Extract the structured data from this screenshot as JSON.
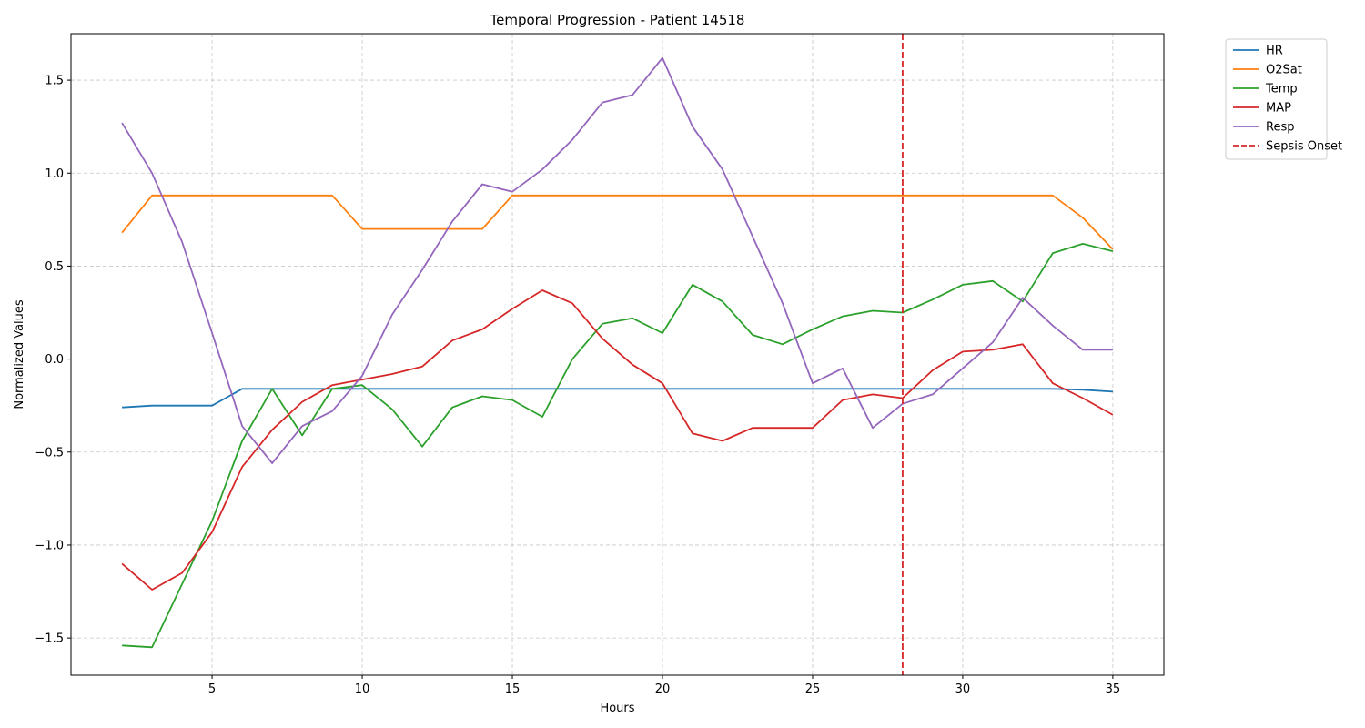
{
  "chart_data": {
    "type": "line",
    "title": "Temporal Progression - Patient 14518",
    "xlabel": "Hours",
    "ylabel": "Normalized Values",
    "xlim": [
      0.3,
      36.7
    ],
    "ylim": [
      -1.7,
      1.75
    ],
    "xticks": [
      5,
      10,
      15,
      20,
      25,
      30,
      35
    ],
    "yticks": [
      -1.5,
      -1.0,
      -0.5,
      0.0,
      0.5,
      1.0,
      1.5
    ],
    "ytick_labels": [
      "−1.5",
      "−1.0",
      "−0.5",
      "0.0",
      "0.5",
      "1.0",
      "1.5"
    ],
    "grid": true,
    "legend_position": "outside-top-right",
    "x": [
      2,
      3,
      4,
      5,
      6,
      7,
      8,
      9,
      10,
      11,
      12,
      13,
      14,
      15,
      16,
      17,
      18,
      19,
      20,
      21,
      22,
      23,
      24,
      25,
      26,
      27,
      28,
      29,
      30,
      31,
      32,
      33,
      34,
      35
    ],
    "series": [
      {
        "name": "HR",
        "color": "#1f77b4",
        "values": [
          -0.26,
          -0.25,
          -0.25,
          -0.25,
          -0.16,
          -0.16,
          -0.16,
          -0.16,
          -0.16,
          -0.16,
          -0.16,
          -0.16,
          -0.16,
          -0.16,
          -0.16,
          -0.16,
          -0.16,
          -0.16,
          -0.16,
          -0.16,
          -0.16,
          -0.16,
          -0.16,
          -0.16,
          -0.16,
          -0.16,
          -0.16,
          -0.16,
          -0.16,
          -0.16,
          -0.16,
          -0.16,
          -0.165,
          -0.175
        ]
      },
      {
        "name": "O2Sat",
        "color": "#ff7f0e",
        "values": [
          0.68,
          0.88,
          0.88,
          0.88,
          0.88,
          0.88,
          0.88,
          0.88,
          0.7,
          0.7,
          0.7,
          0.7,
          0.7,
          0.88,
          0.88,
          0.88,
          0.88,
          0.88,
          0.88,
          0.88,
          0.88,
          0.88,
          0.88,
          0.88,
          0.88,
          0.88,
          0.88,
          0.88,
          0.88,
          0.88,
          0.88,
          0.88,
          0.76,
          0.59
        ]
      },
      {
        "name": "Temp",
        "color": "#2ca02c",
        "values": [
          -1.54,
          -1.55,
          -1.21,
          -0.87,
          -0.44,
          -0.16,
          -0.41,
          -0.16,
          -0.14,
          -0.27,
          -0.47,
          -0.26,
          -0.2,
          -0.22,
          -0.31,
          0.0,
          0.19,
          0.22,
          0.14,
          0.4,
          0.31,
          0.13,
          0.08,
          0.16,
          0.23,
          0.26,
          0.25,
          0.32,
          0.4,
          0.42,
          0.31,
          0.57,
          0.62,
          0.58
        ]
      },
      {
        "name": "MAP",
        "color": "#d62728",
        "values": [
          -1.1,
          -1.24,
          -1.15,
          -0.93,
          -0.58,
          -0.38,
          -0.23,
          -0.14,
          -0.11,
          -0.08,
          -0.04,
          0.1,
          0.16,
          0.27,
          0.37,
          0.3,
          0.11,
          -0.03,
          -0.13,
          -0.4,
          -0.44,
          -0.37,
          -0.37,
          -0.37,
          -0.22,
          -0.19,
          -0.21,
          -0.06,
          0.04,
          0.05,
          0.08,
          -0.13,
          -0.21,
          -0.3
        ]
      },
      {
        "name": "Resp",
        "color": "#9467bd",
        "values": [
          1.27,
          1.0,
          0.63,
          0.14,
          -0.36,
          -0.56,
          -0.36,
          -0.28,
          -0.09,
          0.24,
          0.48,
          0.74,
          0.94,
          0.9,
          1.02,
          1.18,
          1.38,
          1.42,
          1.62,
          1.25,
          1.02,
          0.66,
          0.3,
          -0.13,
          -0.05,
          -0.37,
          -0.24,
          -0.19,
          -0.05,
          0.09,
          0.33,
          0.18,
          0.05,
          0.05
        ]
      }
    ],
    "vline": {
      "name": "Sepsis Onset",
      "x": 28,
      "color": "#d62728",
      "style": "dashed"
    }
  }
}
